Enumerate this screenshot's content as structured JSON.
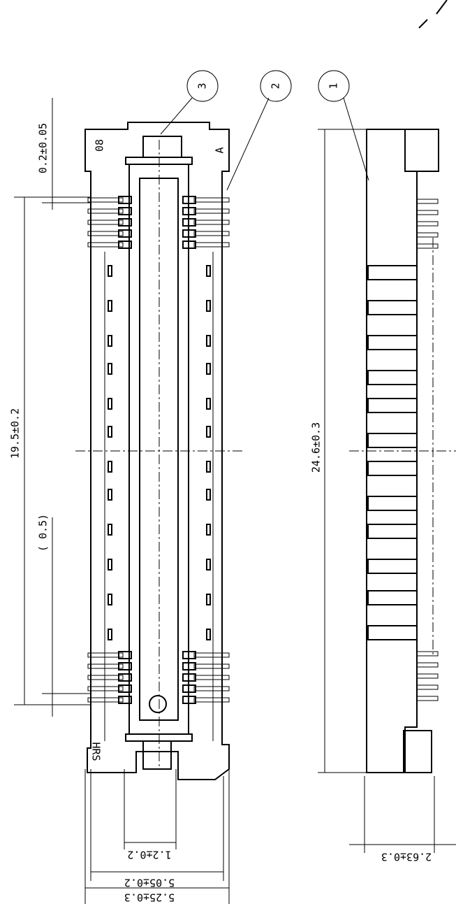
{
  "dimensions": {
    "pin_width": "0.2±0.05",
    "pin_span": "19.5±0.2",
    "pitch": "( 0.5)",
    "length": "24.6±0.3",
    "slot_width": "1.2±0.2",
    "body_width": "5.05±0.2",
    "overall_width": "5.25±0.3",
    "height": "2.63±0.3"
  },
  "markings": {
    "pin_count": "08",
    "polarity": "A",
    "maker": "HRS"
  },
  "callouts": [
    "1",
    "2",
    "3"
  ]
}
